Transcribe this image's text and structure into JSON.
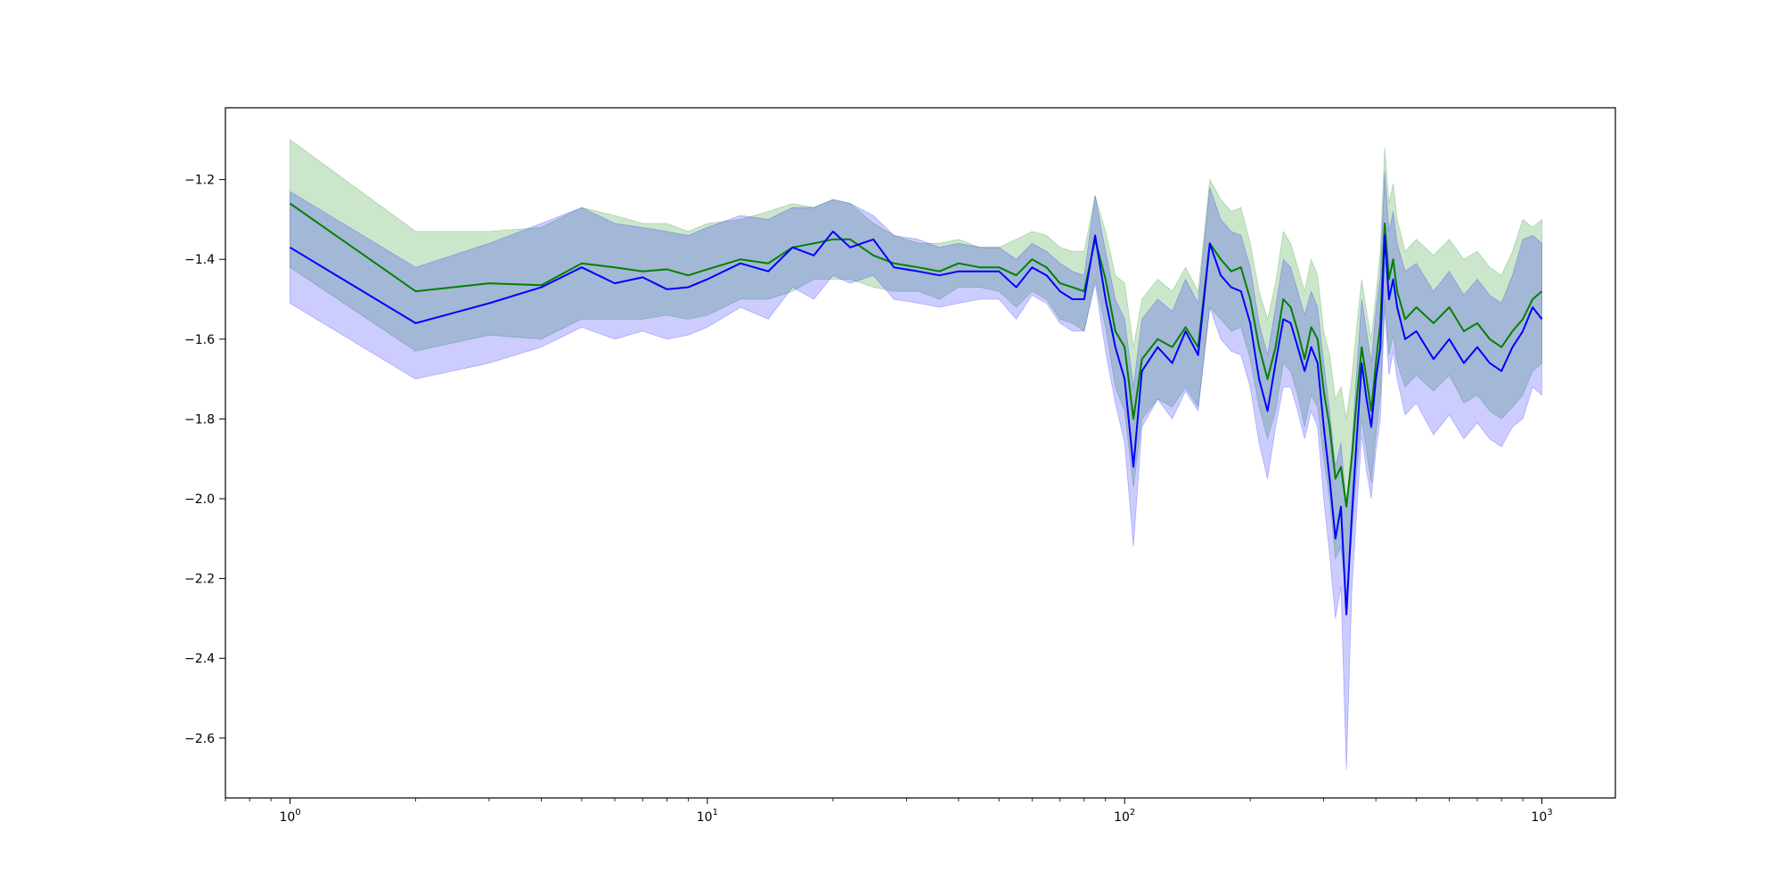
{
  "chart_data": {
    "type": "line",
    "title": "",
    "xlabel": "",
    "ylabel": "",
    "x_scale": "log",
    "xlim": [
      0.7,
      1500
    ],
    "ylim": [
      -2.75,
      -1.02
    ],
    "x_ticks": [
      {
        "value": 1,
        "base": "10",
        "exp": "0"
      },
      {
        "value": 10,
        "base": "10",
        "exp": "1"
      },
      {
        "value": 100,
        "base": "10",
        "exp": "2"
      },
      {
        "value": 1000,
        "base": "10",
        "exp": "3"
      }
    ],
    "y_ticks": [
      {
        "value": -1.2,
        "label": "−1.2"
      },
      {
        "value": -1.4,
        "label": "−1.4"
      },
      {
        "value": -1.6,
        "label": "−1.6"
      },
      {
        "value": -1.8,
        "label": "−1.8"
      },
      {
        "value": -2.0,
        "label": "−2.0"
      },
      {
        "value": -2.2,
        "label": "−2.2"
      },
      {
        "value": -2.4,
        "label": "−2.4"
      },
      {
        "value": -2.6,
        "label": "−2.6"
      }
    ],
    "grid": false,
    "legend": "none",
    "series": [
      {
        "color": "#008000",
        "band_color": "#008000",
        "band_opacity": 0.2,
        "x": [
          1,
          2,
          3,
          4,
          5,
          6,
          7,
          8,
          9,
          10,
          12,
          14,
          16,
          18,
          20,
          22,
          25,
          28,
          32,
          36,
          40,
          45,
          50,
          55,
          60,
          65,
          70,
          75,
          80,
          85,
          90,
          95,
          100,
          105,
          110,
          120,
          130,
          140,
          150,
          160,
          170,
          180,
          190,
          200,
          210,
          220,
          230,
          240,
          250,
          260,
          270,
          280,
          290,
          300,
          310,
          320,
          330,
          340,
          350,
          360,
          370,
          380,
          390,
          400,
          410,
          420,
          430,
          440,
          450,
          470,
          500,
          550,
          600,
          650,
          700,
          750,
          800,
          850,
          900,
          950,
          1000
        ],
        "y": [
          -1.26,
          -1.48,
          -1.46,
          -1.465,
          -1.41,
          -1.42,
          -1.43,
          -1.425,
          -1.44,
          -1.425,
          -1.4,
          -1.41,
          -1.37,
          -1.36,
          -1.35,
          -1.35,
          -1.39,
          -1.41,
          -1.42,
          -1.43,
          -1.41,
          -1.42,
          -1.42,
          -1.44,
          -1.4,
          -1.42,
          -1.46,
          -1.47,
          -1.48,
          -1.35,
          -1.45,
          -1.58,
          -1.62,
          -1.8,
          -1.65,
          -1.6,
          -1.62,
          -1.57,
          -1.62,
          -1.36,
          -1.4,
          -1.43,
          -1.42,
          -1.5,
          -1.62,
          -1.7,
          -1.62,
          -1.5,
          -1.52,
          -1.58,
          -1.65,
          -1.57,
          -1.6,
          -1.73,
          -1.82,
          -1.95,
          -1.92,
          -2.02,
          -1.9,
          -1.75,
          -1.62,
          -1.7,
          -1.78,
          -1.66,
          -1.56,
          -1.31,
          -1.45,
          -1.4,
          -1.48,
          -1.55,
          -1.52,
          -1.56,
          -1.52,
          -1.58,
          -1.56,
          -1.6,
          -1.62,
          -1.58,
          -1.55,
          -1.5,
          -1.48
        ],
        "upper": [
          -1.1,
          -1.33,
          -1.33,
          -1.32,
          -1.27,
          -1.29,
          -1.31,
          -1.31,
          -1.33,
          -1.31,
          -1.3,
          -1.28,
          -1.26,
          -1.27,
          -1.25,
          -1.26,
          -1.31,
          -1.34,
          -1.36,
          -1.36,
          -1.35,
          -1.37,
          -1.37,
          -1.35,
          -1.33,
          -1.34,
          -1.37,
          -1.38,
          -1.38,
          -1.24,
          -1.33,
          -1.44,
          -1.46,
          -1.62,
          -1.5,
          -1.45,
          -1.48,
          -1.42,
          -1.48,
          -1.2,
          -1.25,
          -1.28,
          -1.27,
          -1.36,
          -1.48,
          -1.55,
          -1.46,
          -1.33,
          -1.36,
          -1.42,
          -1.48,
          -1.4,
          -1.44,
          -1.58,
          -1.64,
          -1.75,
          -1.72,
          -1.8,
          -1.7,
          -1.57,
          -1.45,
          -1.53,
          -1.6,
          -1.49,
          -1.38,
          -1.12,
          -1.26,
          -1.21,
          -1.3,
          -1.38,
          -1.35,
          -1.39,
          -1.35,
          -1.4,
          -1.38,
          -1.42,
          -1.44,
          -1.38,
          -1.3,
          -1.32,
          -1.3
        ],
        "lower": [
          -1.42,
          -1.63,
          -1.59,
          -1.6,
          -1.55,
          -1.55,
          -1.55,
          -1.54,
          -1.55,
          -1.54,
          -1.5,
          -1.5,
          -1.48,
          -1.45,
          -1.45,
          -1.45,
          -1.47,
          -1.48,
          -1.48,
          -1.5,
          -1.47,
          -1.47,
          -1.48,
          -1.52,
          -1.48,
          -1.5,
          -1.55,
          -1.56,
          -1.58,
          -1.45,
          -1.57,
          -1.72,
          -1.78,
          -1.97,
          -1.8,
          -1.75,
          -1.77,
          -1.72,
          -1.77,
          -1.52,
          -1.55,
          -1.58,
          -1.57,
          -1.65,
          -1.77,
          -1.85,
          -1.78,
          -1.66,
          -1.68,
          -1.74,
          -1.82,
          -1.74,
          -1.77,
          -1.9,
          -2.0,
          -2.15,
          -2.12,
          -2.25,
          -2.1,
          -1.93,
          -1.8,
          -1.88,
          -1.96,
          -1.84,
          -1.74,
          -1.5,
          -1.64,
          -1.59,
          -1.66,
          -1.72,
          -1.69,
          -1.73,
          -1.69,
          -1.76,
          -1.74,
          -1.78,
          -1.8,
          -1.77,
          -1.74,
          -1.68,
          -1.66
        ]
      },
      {
        "color": "#0000ff",
        "band_color": "#0000ff",
        "band_opacity": 0.2,
        "x": [
          1,
          2,
          3,
          4,
          5,
          6,
          7,
          8,
          9,
          10,
          12,
          14,
          16,
          18,
          20,
          22,
          25,
          28,
          32,
          36,
          40,
          45,
          50,
          55,
          60,
          65,
          70,
          75,
          80,
          85,
          90,
          95,
          100,
          105,
          110,
          120,
          130,
          140,
          150,
          160,
          170,
          180,
          190,
          200,
          210,
          220,
          230,
          240,
          250,
          260,
          270,
          280,
          290,
          300,
          310,
          320,
          330,
          340,
          350,
          360,
          370,
          380,
          390,
          400,
          410,
          420,
          430,
          440,
          450,
          470,
          500,
          550,
          600,
          650,
          700,
          750,
          800,
          850,
          900,
          950,
          1000
        ],
        "y": [
          -1.37,
          -1.56,
          -1.51,
          -1.47,
          -1.42,
          -1.46,
          -1.445,
          -1.475,
          -1.47,
          -1.45,
          -1.41,
          -1.43,
          -1.37,
          -1.39,
          -1.33,
          -1.37,
          -1.35,
          -1.42,
          -1.43,
          -1.44,
          -1.43,
          -1.43,
          -1.43,
          -1.47,
          -1.42,
          -1.44,
          -1.48,
          -1.5,
          -1.5,
          -1.34,
          -1.5,
          -1.62,
          -1.7,
          -1.92,
          -1.68,
          -1.62,
          -1.66,
          -1.58,
          -1.64,
          -1.36,
          -1.44,
          -1.47,
          -1.48,
          -1.56,
          -1.7,
          -1.78,
          -1.66,
          -1.55,
          -1.56,
          -1.62,
          -1.68,
          -1.62,
          -1.66,
          -1.82,
          -1.95,
          -2.1,
          -2.02,
          -2.29,
          -2.05,
          -1.85,
          -1.66,
          -1.75,
          -1.82,
          -1.7,
          -1.62,
          -1.34,
          -1.5,
          -1.45,
          -1.52,
          -1.6,
          -1.58,
          -1.65,
          -1.6,
          -1.66,
          -1.62,
          -1.66,
          -1.68,
          -1.62,
          -1.58,
          -1.52,
          -1.55
        ],
        "upper": [
          -1.23,
          -1.42,
          -1.36,
          -1.31,
          -1.27,
          -1.31,
          -1.32,
          -1.33,
          -1.34,
          -1.32,
          -1.29,
          -1.3,
          -1.27,
          -1.27,
          -1.25,
          -1.26,
          -1.29,
          -1.34,
          -1.35,
          -1.37,
          -1.36,
          -1.37,
          -1.37,
          -1.4,
          -1.36,
          -1.38,
          -1.41,
          -1.43,
          -1.44,
          -1.24,
          -1.38,
          -1.5,
          -1.55,
          -1.72,
          -1.55,
          -1.5,
          -1.53,
          -1.45,
          -1.51,
          -1.22,
          -1.3,
          -1.33,
          -1.34,
          -1.42,
          -1.56,
          -1.64,
          -1.52,
          -1.4,
          -1.42,
          -1.48,
          -1.54,
          -1.48,
          -1.52,
          -1.66,
          -1.78,
          -1.92,
          -1.86,
          -2.02,
          -1.88,
          -1.68,
          -1.5,
          -1.58,
          -1.66,
          -1.53,
          -1.44,
          -1.18,
          -1.33,
          -1.28,
          -1.36,
          -1.43,
          -1.41,
          -1.48,
          -1.43,
          -1.49,
          -1.45,
          -1.49,
          -1.51,
          -1.44,
          -1.35,
          -1.34,
          -1.36
        ],
        "lower": [
          -1.51,
          -1.7,
          -1.66,
          -1.62,
          -1.57,
          -1.6,
          -1.58,
          -1.6,
          -1.59,
          -1.57,
          -1.52,
          -1.55,
          -1.47,
          -1.5,
          -1.44,
          -1.46,
          -1.44,
          -1.5,
          -1.51,
          -1.52,
          -1.51,
          -1.5,
          -1.5,
          -1.55,
          -1.49,
          -1.51,
          -1.56,
          -1.58,
          -1.58,
          -1.46,
          -1.63,
          -1.76,
          -1.86,
          -2.12,
          -1.82,
          -1.75,
          -1.8,
          -1.73,
          -1.78,
          -1.52,
          -1.6,
          -1.63,
          -1.64,
          -1.72,
          -1.86,
          -1.95,
          -1.82,
          -1.72,
          -1.72,
          -1.78,
          -1.85,
          -1.78,
          -1.82,
          -2.0,
          -2.14,
          -2.3,
          -2.22,
          -2.68,
          -2.24,
          -2.03,
          -1.84,
          -1.93,
          -2.0,
          -1.88,
          -1.8,
          -1.52,
          -1.69,
          -1.63,
          -1.7,
          -1.79,
          -1.76,
          -1.84,
          -1.79,
          -1.85,
          -1.81,
          -1.85,
          -1.87,
          -1.82,
          -1.8,
          -1.72,
          -1.74
        ]
      }
    ]
  }
}
